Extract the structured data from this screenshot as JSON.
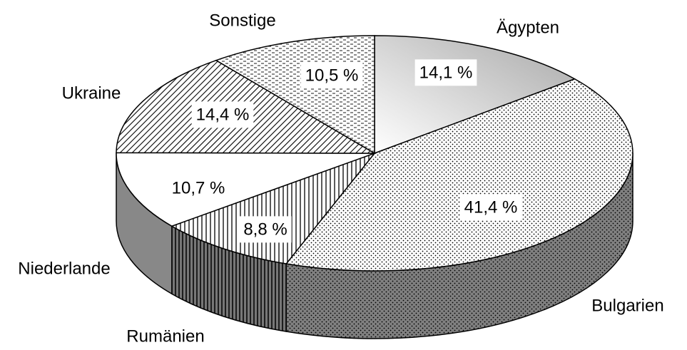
{
  "chart_data": {
    "type": "pie",
    "categories": [
      "Ägypten",
      "Bulgarien",
      "Rumänien",
      "Niederlande",
      "Ukraine",
      "Sonstige"
    ],
    "values": [
      14.1,
      41.4,
      8.8,
      10.7,
      14.4,
      10.5
    ],
    "value_labels": [
      "14,1 %",
      "41,4 %",
      "8,8 %",
      "10,7 %",
      "14,4 %",
      "10,5 %"
    ]
  }
}
